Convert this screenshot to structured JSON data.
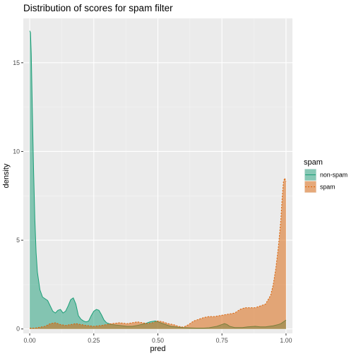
{
  "chart_data": {
    "type": "area",
    "chart_kind": "density",
    "title": "Distribution of scores for spam filter",
    "xlabel": "pred",
    "ylabel": "density",
    "xlim": [
      -0.025,
      1.025
    ],
    "ylim": [
      -0.25,
      17.5
    ],
    "x_ticks": [
      0.0,
      0.25,
      0.5,
      0.75,
      1.0
    ],
    "x_tick_labels": [
      "0.00",
      "0.25",
      "0.50",
      "0.75",
      "1.00"
    ],
    "y_ticks": [
      0,
      5,
      10,
      15
    ],
    "y_tick_labels": [
      "0",
      "5",
      "10",
      "15"
    ],
    "grid": true,
    "legend": {
      "title": "spam",
      "placement": "right",
      "entries": [
        "non-spam",
        "spam"
      ]
    },
    "series": [
      {
        "name": "non-spam",
        "color": "#1b9e77",
        "fill": "#1b9e77",
        "fill_opacity": 0.5,
        "line_style": "solid",
        "x": [
          0.0,
          0.003,
          0.006,
          0.01,
          0.015,
          0.02,
          0.025,
          0.03,
          0.04,
          0.05,
          0.06,
          0.07,
          0.08,
          0.09,
          0.1,
          0.11,
          0.12,
          0.13,
          0.14,
          0.15,
          0.16,
          0.17,
          0.18,
          0.19,
          0.2,
          0.21,
          0.22,
          0.23,
          0.24,
          0.25,
          0.26,
          0.27,
          0.28,
          0.29,
          0.3,
          0.32,
          0.35,
          0.38,
          0.4,
          0.42,
          0.45,
          0.47,
          0.49,
          0.5,
          0.51,
          0.53,
          0.55,
          0.58,
          0.6,
          0.63,
          0.65,
          0.68,
          0.7,
          0.73,
          0.75,
          0.76,
          0.77,
          0.78,
          0.8,
          0.83,
          0.85,
          0.88,
          0.9,
          0.92,
          0.95,
          0.97,
          0.98,
          0.99,
          1.0
        ],
        "y": [
          16.8,
          16.7,
          15.5,
          12.5,
          9.0,
          6.2,
          4.3,
          3.2,
          2.2,
          1.8,
          1.7,
          1.6,
          1.3,
          1.0,
          0.9,
          1.05,
          1.1,
          0.9,
          1.0,
          1.3,
          1.65,
          1.75,
          1.4,
          0.75,
          0.55,
          0.45,
          0.4,
          0.45,
          0.75,
          1.0,
          1.1,
          1.05,
          0.8,
          0.5,
          0.35,
          0.25,
          0.2,
          0.15,
          0.15,
          0.2,
          0.3,
          0.4,
          0.45,
          0.4,
          0.35,
          0.25,
          0.15,
          0.1,
          0.08,
          0.06,
          0.05,
          0.05,
          0.07,
          0.15,
          0.25,
          0.3,
          0.25,
          0.15,
          0.08,
          0.08,
          0.12,
          0.15,
          0.12,
          0.12,
          0.18,
          0.25,
          0.3,
          0.4,
          0.5
        ]
      },
      {
        "name": "spam",
        "color": "#d95f02",
        "fill": "#d95f02",
        "fill_opacity": 0.5,
        "line_style": "dashed",
        "x": [
          0.0,
          0.02,
          0.04,
          0.06,
          0.08,
          0.1,
          0.12,
          0.14,
          0.16,
          0.18,
          0.2,
          0.22,
          0.25,
          0.28,
          0.3,
          0.32,
          0.35,
          0.38,
          0.4,
          0.42,
          0.44,
          0.46,
          0.48,
          0.5,
          0.52,
          0.54,
          0.56,
          0.58,
          0.6,
          0.62,
          0.64,
          0.66,
          0.68,
          0.7,
          0.72,
          0.74,
          0.76,
          0.78,
          0.8,
          0.82,
          0.84,
          0.86,
          0.88,
          0.9,
          0.92,
          0.94,
          0.95,
          0.96,
          0.97,
          0.98,
          0.985,
          0.99,
          0.995,
          1.0
        ],
        "y": [
          0.05,
          0.05,
          0.1,
          0.15,
          0.3,
          0.35,
          0.25,
          0.2,
          0.25,
          0.3,
          0.25,
          0.2,
          0.15,
          0.2,
          0.25,
          0.3,
          0.35,
          0.3,
          0.35,
          0.4,
          0.35,
          0.3,
          0.35,
          0.45,
          0.4,
          0.3,
          0.25,
          0.15,
          0.1,
          0.25,
          0.45,
          0.55,
          0.65,
          0.7,
          0.7,
          0.75,
          0.8,
          0.85,
          0.9,
          1.1,
          1.2,
          1.2,
          1.2,
          1.3,
          1.4,
          1.9,
          2.5,
          3.4,
          4.6,
          6.2,
          7.4,
          8.3,
          8.5,
          8.3
        ]
      }
    ]
  }
}
